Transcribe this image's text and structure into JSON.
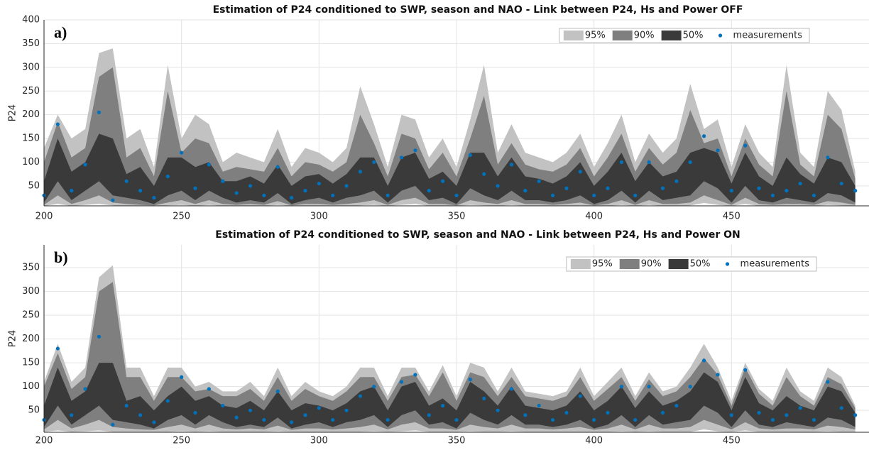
{
  "chart_data": [
    {
      "type": "area",
      "title": "Estimation of P24 conditioned to SWP, season and NAO - Link between P24,  Hs and Power OFF",
      "panel_label": "a)",
      "ylabel": "P24",
      "x": [
        200,
        205,
        210,
        215,
        220,
        225,
        230,
        235,
        240,
        245,
        250,
        255,
        260,
        265,
        270,
        275,
        280,
        285,
        290,
        295,
        300,
        305,
        310,
        315,
        320,
        325,
        330,
        335,
        340,
        345,
        350,
        355,
        360,
        365,
        370,
        375,
        380,
        385,
        390,
        395,
        400,
        405,
        410,
        415,
        420,
        425,
        430,
        435,
        440,
        445,
        450,
        455,
        460,
        465,
        470,
        475,
        480,
        485,
        490,
        495
      ],
      "xlim": [
        200,
        500
      ],
      "ylim": [
        8,
        400
      ],
      "xticks": [
        200,
        250,
        300,
        350,
        400,
        450
      ],
      "yticks": [
        50,
        100,
        150,
        200,
        250,
        300,
        350,
        400
      ],
      "grid": true,
      "legend": "upper right",
      "series": [
        {
          "name": "95%",
          "color": "#c2c2c2",
          "upper": [
            130,
            200,
            150,
            170,
            330,
            340,
            150,
            170,
            90,
            305,
            150,
            200,
            180,
            100,
            120,
            110,
            100,
            170,
            90,
            130,
            120,
            100,
            130,
            260,
            180,
            90,
            200,
            190,
            110,
            150,
            90,
            190,
            305,
            120,
            180,
            120,
            110,
            100,
            120,
            160,
            90,
            140,
            200,
            100,
            160,
            120,
            150,
            265,
            170,
            190,
            90,
            180,
            120,
            90,
            305,
            120,
            90,
            250,
            210,
            80
          ],
          "lower": [
            8,
            12,
            8,
            10,
            12,
            9,
            8,
            8,
            8,
            9,
            10,
            8,
            10,
            8,
            8,
            8,
            8,
            10,
            8,
            8,
            8,
            8,
            8,
            9,
            10,
            8,
            10,
            12,
            8,
            8,
            8,
            10,
            9,
            8,
            10,
            8,
            8,
            8,
            8,
            9,
            8,
            8,
            10,
            8,
            10,
            8,
            8,
            9,
            14,
            10,
            8,
            12,
            8,
            8,
            8,
            8,
            8,
            10,
            9,
            8
          ]
        },
        {
          "name": "90%",
          "color": "#7f7f7f",
          "upper": [
            100,
            185,
            110,
            130,
            280,
            300,
            110,
            130,
            70,
            250,
            120,
            150,
            140,
            80,
            90,
            85,
            80,
            130,
            70,
            100,
            95,
            80,
            100,
            200,
            140,
            70,
            160,
            150,
            85,
            120,
            70,
            150,
            240,
            95,
            140,
            95,
            85,
            80,
            95,
            130,
            70,
            110,
            160,
            80,
            130,
            95,
            120,
            210,
            140,
            150,
            70,
            150,
            95,
            70,
            250,
            95,
            70,
            200,
            170,
            65
          ],
          "lower": [
            10,
            30,
            12,
            20,
            30,
            15,
            12,
            10,
            9,
            15,
            20,
            12,
            20,
            12,
            10,
            12,
            10,
            18,
            9,
            12,
            12,
            10,
            12,
            15,
            20,
            10,
            20,
            25,
            12,
            12,
            9,
            20,
            15,
            12,
            20,
            12,
            12,
            10,
            12,
            15,
            9,
            12,
            20,
            10,
            20,
            12,
            12,
            15,
            30,
            20,
            10,
            25,
            12,
            10,
            12,
            12,
            10,
            18,
            15,
            10
          ]
        },
        {
          "name": "50%",
          "color": "#3a3a3a",
          "upper": [
            60,
            150,
            80,
            100,
            160,
            150,
            75,
            90,
            50,
            110,
            110,
            90,
            100,
            60,
            60,
            70,
            55,
            95,
            50,
            70,
            75,
            55,
            75,
            110,
            110,
            50,
            110,
            120,
            65,
            80,
            50,
            120,
            120,
            70,
            110,
            70,
            65,
            55,
            70,
            100,
            50,
            80,
            120,
            60,
            100,
            70,
            80,
            120,
            130,
            120,
            55,
            120,
            70,
            50,
            110,
            75,
            55,
            110,
            100,
            50
          ],
          "lower": [
            15,
            60,
            20,
            40,
            60,
            30,
            25,
            20,
            12,
            30,
            40,
            20,
            40,
            25,
            15,
            20,
            15,
            35,
            12,
            20,
            25,
            15,
            25,
            30,
            40,
            15,
            40,
            50,
            20,
            25,
            12,
            45,
            30,
            20,
            40,
            20,
            20,
            15,
            20,
            30,
            12,
            20,
            40,
            15,
            40,
            20,
            25,
            30,
            60,
            45,
            15,
            50,
            20,
            15,
            25,
            20,
            15,
            35,
            30,
            15
          ]
        },
        {
          "name": "measurements",
          "color": "#0072bd",
          "values": [
            30,
            180,
            40,
            95,
            205,
            20,
            60,
            40,
            25,
            70,
            120,
            45,
            95,
            60,
            35,
            50,
            30,
            90,
            25,
            40,
            55,
            30,
            50,
            80,
            100,
            30,
            110,
            125,
            40,
            60,
            30,
            115,
            75,
            50,
            95,
            40,
            60,
            30,
            45,
            80,
            30,
            45,
            100,
            30,
            100,
            45,
            60,
            100,
            155,
            125,
            40,
            135,
            45,
            30,
            40,
            55,
            30,
            110,
            55,
            40
          ]
        }
      ]
    },
    {
      "type": "area",
      "title": "Estimation of P24 conditioned to SWP, season and NAO - Link between P24,  Hs and Power ON",
      "panel_label": "b)",
      "ylabel": "P24",
      "x": [
        200,
        205,
        210,
        215,
        220,
        225,
        230,
        235,
        240,
        245,
        250,
        255,
        260,
        265,
        270,
        275,
        280,
        285,
        290,
        295,
        300,
        305,
        310,
        315,
        320,
        325,
        330,
        335,
        340,
        345,
        350,
        355,
        360,
        365,
        370,
        375,
        380,
        385,
        390,
        395,
        400,
        405,
        410,
        415,
        420,
        425,
        430,
        435,
        440,
        445,
        450,
        455,
        460,
        465,
        470,
        475,
        480,
        485,
        490,
        495
      ],
      "xlim": [
        200,
        500
      ],
      "ylim": [
        4,
        398
      ],
      "xticks": [
        200,
        250,
        300,
        350,
        400,
        450
      ],
      "yticks": [
        50,
        100,
        150,
        200,
        250,
        300,
        350
      ],
      "grid": true,
      "legend": "upper right",
      "series": [
        {
          "name": "95%",
          "color": "#c2c2c2",
          "upper": [
            110,
            190,
            110,
            140,
            330,
            355,
            140,
            140,
            80,
            140,
            140,
            100,
            110,
            90,
            90,
            110,
            80,
            140,
            80,
            110,
            90,
            80,
            100,
            140,
            140,
            80,
            140,
            140,
            90,
            145,
            80,
            150,
            140,
            90,
            140,
            90,
            85,
            80,
            90,
            140,
            80,
            110,
            140,
            80,
            130,
            90,
            100,
            140,
            190,
            140,
            70,
            150,
            95,
            70,
            140,
            90,
            70,
            140,
            120,
            60
          ],
          "lower": [
            5,
            8,
            5,
            6,
            8,
            5,
            5,
            5,
            5,
            5,
            6,
            5,
            6,
            5,
            5,
            5,
            5,
            6,
            5,
            5,
            5,
            5,
            5,
            5,
            6,
            5,
            6,
            8,
            5,
            5,
            5,
            6,
            5,
            5,
            6,
            5,
            5,
            5,
            5,
            5,
            5,
            5,
            6,
            5,
            6,
            5,
            5,
            5,
            10,
            6,
            5,
            8,
            5,
            5,
            5,
            5,
            5,
            6,
            5,
            5
          ]
        },
        {
          "name": "90%",
          "color": "#7f7f7f",
          "upper": [
            100,
            170,
            95,
            120,
            300,
            320,
            120,
            120,
            70,
            120,
            120,
            90,
            95,
            80,
            80,
            95,
            70,
            120,
            70,
            95,
            80,
            70,
            90,
            120,
            120,
            70,
            120,
            125,
            80,
            130,
            70,
            130,
            120,
            80,
            120,
            80,
            75,
            70,
            80,
            120,
            70,
            95,
            120,
            70,
            115,
            80,
            90,
            120,
            160,
            125,
            60,
            140,
            85,
            60,
            120,
            80,
            60,
            120,
            105,
            55
          ],
          "lower": [
            10,
            30,
            12,
            20,
            30,
            15,
            12,
            10,
            9,
            15,
            20,
            12,
            20,
            12,
            10,
            12,
            10,
            18,
            9,
            12,
            12,
            10,
            12,
            15,
            20,
            10,
            20,
            25,
            12,
            12,
            9,
            20,
            15,
            12,
            20,
            12,
            12,
            10,
            12,
            15,
            9,
            12,
            20,
            10,
            20,
            12,
            12,
            15,
            30,
            20,
            10,
            25,
            12,
            10,
            12,
            12,
            10,
            18,
            15,
            10
          ]
        },
        {
          "name": "50%",
          "color": "#3a3a3a",
          "upper": [
            60,
            140,
            70,
            90,
            150,
            150,
            70,
            80,
            50,
            80,
            100,
            70,
            80,
            60,
            55,
            70,
            50,
            90,
            50,
            65,
            60,
            50,
            65,
            90,
            100,
            50,
            100,
            110,
            60,
            75,
            50,
            110,
            90,
            60,
            100,
            60,
            55,
            50,
            60,
            90,
            50,
            70,
            100,
            55,
            90,
            60,
            70,
            90,
            130,
            110,
            50,
            120,
            65,
            50,
            80,
            60,
            50,
            100,
            90,
            45
          ],
          "lower": [
            15,
            60,
            20,
            40,
            60,
            30,
            25,
            20,
            12,
            30,
            40,
            20,
            40,
            25,
            15,
            20,
            15,
            35,
            12,
            20,
            25,
            15,
            25,
            30,
            40,
            15,
            40,
            50,
            20,
            25,
            12,
            45,
            30,
            20,
            40,
            20,
            20,
            15,
            20,
            30,
            12,
            20,
            40,
            15,
            40,
            20,
            25,
            30,
            60,
            45,
            15,
            50,
            20,
            15,
            25,
            20,
            15,
            35,
            30,
            15
          ]
        },
        {
          "name": "measurements",
          "color": "#0072bd",
          "values": [
            30,
            180,
            40,
            95,
            205,
            20,
            60,
            40,
            25,
            70,
            120,
            45,
            95,
            60,
            35,
            50,
            30,
            90,
            25,
            40,
            55,
            30,
            50,
            80,
            100,
            30,
            110,
            125,
            40,
            60,
            30,
            115,
            75,
            50,
            95,
            40,
            60,
            30,
            45,
            80,
            30,
            45,
            100,
            30,
            100,
            45,
            60,
            100,
            155,
            125,
            40,
            135,
            45,
            30,
            40,
            55,
            30,
            110,
            55,
            40
          ]
        }
      ]
    }
  ]
}
